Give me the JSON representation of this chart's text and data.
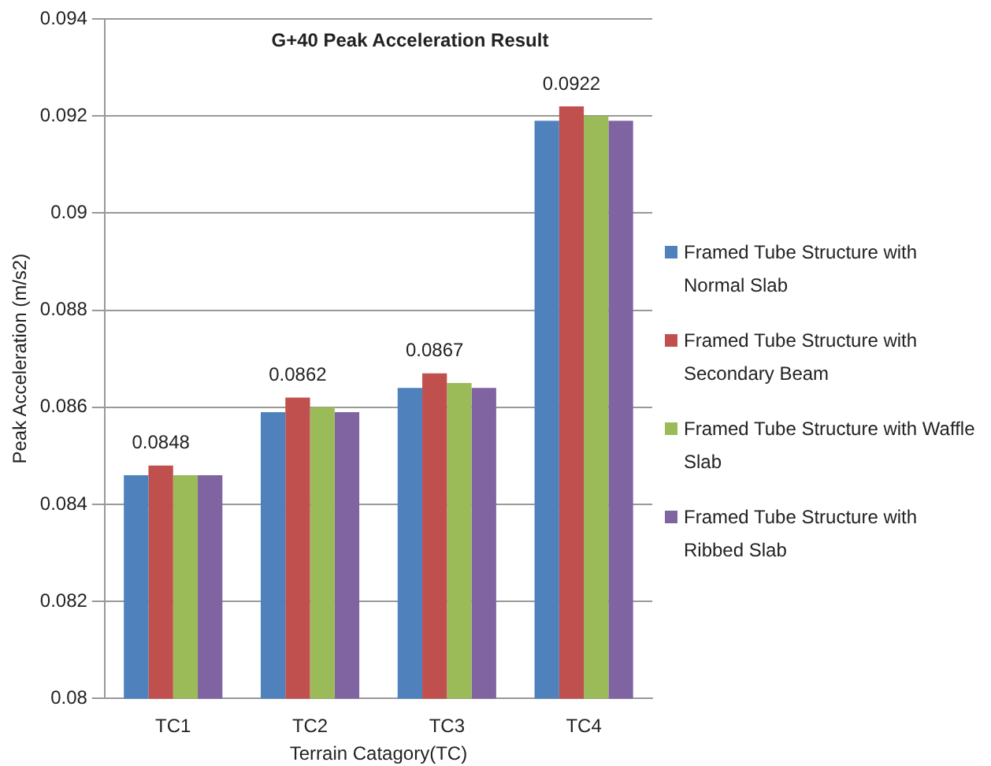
{
  "chart_data": {
    "type": "bar",
    "title": "G+40 Peak Acceleration Result",
    "xlabel": "Terrain Catagory(TC)",
    "ylabel": "Peak Acceleration (m/s2)",
    "categories": [
      "TC1",
      "TC2",
      "TC3",
      "TC4"
    ],
    "series": [
      {
        "name": "Framed Tube Structure with Normal Slab",
        "color": "#4f81bd",
        "values": [
          0.0846,
          0.0859,
          0.0864,
          0.0919
        ]
      },
      {
        "name": "Framed Tube Structure with Secondary Beam",
        "color": "#c0504d",
        "values": [
          0.0848,
          0.0862,
          0.0867,
          0.0922
        ],
        "value_labels": [
          "0.0848",
          "0.0862",
          "0.0867",
          "0.0922"
        ]
      },
      {
        "name": "Framed Tube Structure with Waffle Slab",
        "color": "#9bbb59",
        "values": [
          0.0846,
          0.086,
          0.0865,
          0.092
        ]
      },
      {
        "name": "Framed Tube Structure with Ribbed Slab",
        "color": "#8064a2",
        "values": [
          0.0846,
          0.0859,
          0.0864,
          0.0919
        ]
      }
    ],
    "ylim": [
      0.08,
      0.094
    ],
    "yticks": [
      0.08,
      0.082,
      0.084,
      0.086,
      0.088,
      0.09,
      0.092,
      0.094
    ],
    "grid": "y",
    "legend": "right"
  }
}
